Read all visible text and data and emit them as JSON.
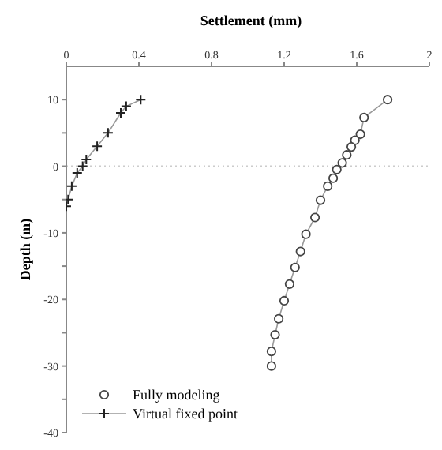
{
  "chart_data": {
    "type": "line",
    "xlabel": "Settlement (mm)",
    "ylabel": "Depth (m)",
    "xlim": [
      0,
      2
    ],
    "xticks": [
      0,
      0.4,
      0.8,
      1.2,
      1.6,
      2
    ],
    "ylim": [
      -40,
      15
    ],
    "yticks": [
      {
        "value": -40,
        "label": "-40"
      },
      {
        "value": -35,
        "label": null
      },
      {
        "value": -30,
        "label": "-30"
      },
      {
        "value": -25,
        "label": null
      },
      {
        "value": -20,
        "label": "-20"
      },
      {
        "value": -15,
        "label": null
      },
      {
        "value": -10,
        "label": "-10"
      },
      {
        "value": -5,
        "label": null
      },
      {
        "value": 0,
        "label": "0"
      },
      {
        "value": 5,
        "label": null
      },
      {
        "value": 10,
        "label": "10"
      }
    ],
    "legend": "bottom left",
    "grid": false,
    "ref_lines": [
      {
        "axis": "y",
        "value": 0,
        "color": "#cccccc",
        "line_style": "dotted"
      }
    ],
    "series": [
      {
        "name": "Fully modeling",
        "color": "#444444",
        "marker": "circle",
        "x": [
          1.77,
          1.64,
          1.62,
          1.59,
          1.57,
          1.545,
          1.52,
          1.49,
          1.47,
          1.44,
          1.4,
          1.37,
          1.32,
          1.29,
          1.26,
          1.23,
          1.2,
          1.17,
          1.15,
          1.13,
          1.13
        ],
        "values": [
          10,
          7.3,
          4.8,
          3.9,
          2.9,
          1.7,
          0.5,
          -0.5,
          -1.8,
          -3,
          -5.1,
          -7.7,
          -10.2,
          -12.8,
          -15.2,
          -17.7,
          -20.2,
          -22.9,
          -25.3,
          -27.8,
          -30
        ]
      },
      {
        "name": "Virtual fixed point",
        "color": "#222222",
        "marker": "cross",
        "x": [
          0.41,
          0.33,
          0.3,
          0.23,
          0.17,
          0.11,
          0.09,
          0.06,
          0.03,
          0.01,
          0
        ],
        "values": [
          10,
          9,
          8,
          5,
          3,
          1,
          0,
          -1,
          -3,
          -5,
          -6
        ]
      }
    ]
  }
}
